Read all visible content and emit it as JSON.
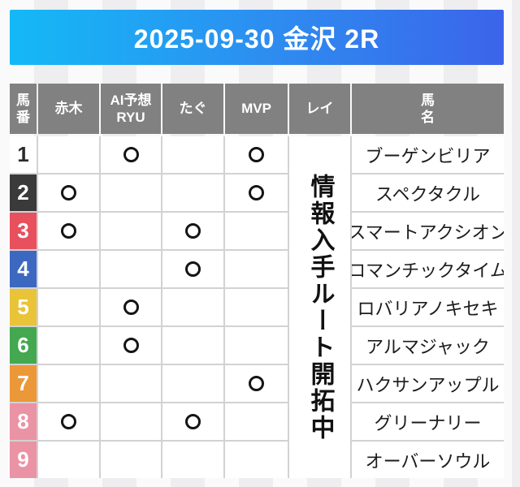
{
  "header": {
    "title": "2025-09-30 金沢 2R"
  },
  "colors": {
    "title_gradient_left": "#14b9f6",
    "title_gradient_right": "#3b64ea",
    "table_header_bg": "#818181",
    "grid_line": "#d2d2d2",
    "rei_column_bg": "#dedede",
    "mark_color": "#141414"
  },
  "table": {
    "columns": [
      {
        "key": "num",
        "label": "馬\n番"
      },
      {
        "key": "akagi",
        "label": "赤木"
      },
      {
        "key": "ryu",
        "label": "AI予想\nRYU"
      },
      {
        "key": "tagu",
        "label": "たぐ"
      },
      {
        "key": "mvp",
        "label": "MVP"
      },
      {
        "key": "rei",
        "label": "レイ"
      },
      {
        "key": "name",
        "label": "馬\n名"
      }
    ],
    "mark_columns": [
      "akagi",
      "ryu",
      "tagu",
      "mvp"
    ],
    "rei_overlay_text": "情報入手ルート開拓中",
    "rows": [
      {
        "num": "1",
        "num_bg": "#ffffff",
        "num_color": "#2b2b2b",
        "marks": {
          "akagi": false,
          "ryu": true,
          "tagu": false,
          "mvp": true
        },
        "name": "ブーゲンビリア"
      },
      {
        "num": "2",
        "num_bg": "#3a3a3a",
        "num_color": "#ffffff",
        "marks": {
          "akagi": true,
          "ryu": false,
          "tagu": false,
          "mvp": true
        },
        "name": "スペクタクル"
      },
      {
        "num": "3",
        "num_bg": "#e8505e",
        "num_color": "#ffffff",
        "marks": {
          "akagi": true,
          "ryu": false,
          "tagu": true,
          "mvp": false
        },
        "name": "スマートアクシオン"
      },
      {
        "num": "4",
        "num_bg": "#3d68c0",
        "num_color": "#ffffff",
        "marks": {
          "akagi": false,
          "ryu": false,
          "tagu": true,
          "mvp": false
        },
        "name": "ロマンチックタイム"
      },
      {
        "num": "5",
        "num_bg": "#e9c338",
        "num_color": "#ffffff",
        "marks": {
          "akagi": false,
          "ryu": true,
          "tagu": false,
          "mvp": false
        },
        "name": "ロバリアノキセキ"
      },
      {
        "num": "6",
        "num_bg": "#43a84f",
        "num_color": "#ffffff",
        "marks": {
          "akagi": false,
          "ryu": true,
          "tagu": false,
          "mvp": false
        },
        "name": "アルマジャック"
      },
      {
        "num": "7",
        "num_bg": "#ec9838",
        "num_color": "#ffffff",
        "marks": {
          "akagi": false,
          "ryu": false,
          "tagu": false,
          "mvp": true
        },
        "name": "ハクサンアップル"
      },
      {
        "num": "8",
        "num_bg": "#ea93a4",
        "num_color": "#ffffff",
        "marks": {
          "akagi": true,
          "ryu": false,
          "tagu": true,
          "mvp": false
        },
        "name": "グリーナリー"
      },
      {
        "num": "9",
        "num_bg": "#ea93a4",
        "num_color": "#ffffff",
        "marks": {
          "akagi": false,
          "ryu": false,
          "tagu": false,
          "mvp": false
        },
        "name": "オーバーソウル"
      }
    ]
  }
}
